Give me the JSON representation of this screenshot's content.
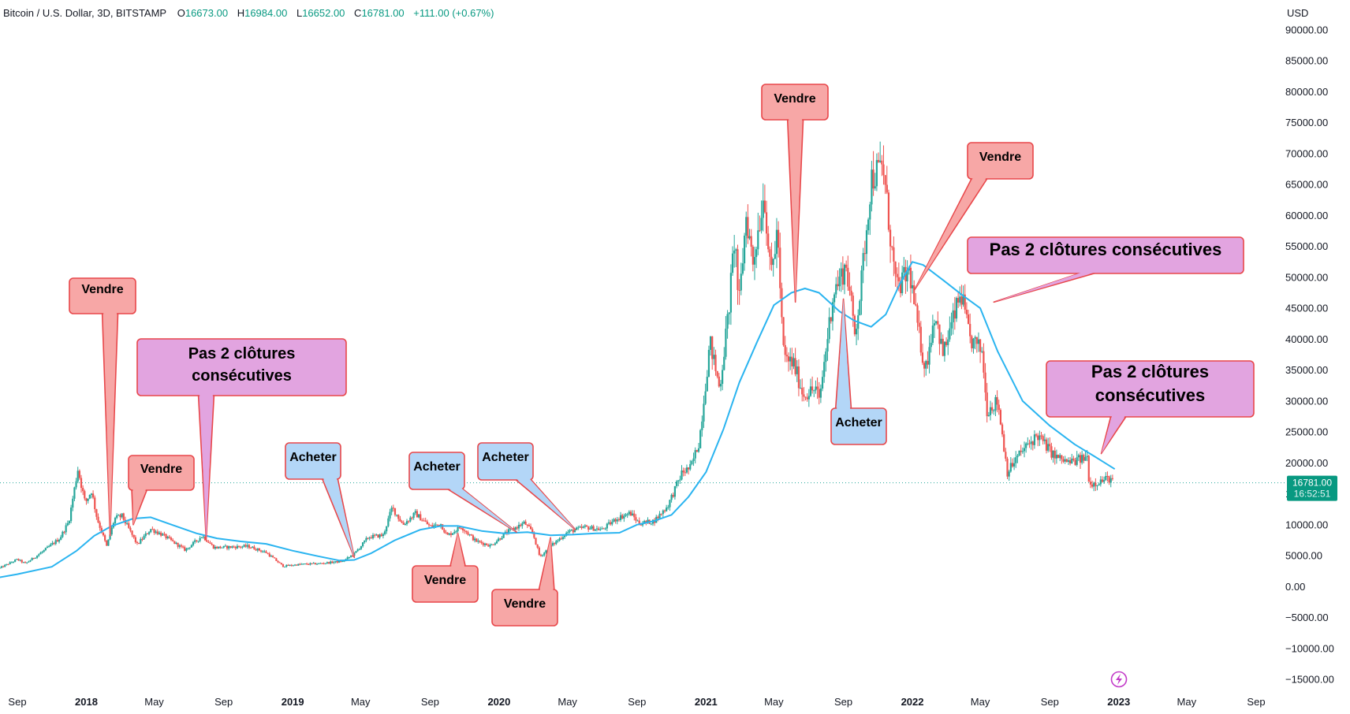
{
  "header": {
    "symbol": "Bitcoin / U.S. Dollar, 3D, BITSTAMP",
    "open_label": "O",
    "open": "16673.00",
    "high_label": "H",
    "high": "16984.00",
    "low_label": "L",
    "low": "16652.00",
    "close_label": "C",
    "close": "16781.00",
    "change": "+111.00 (+0.67%)"
  },
  "axis": {
    "currency": "USD"
  },
  "price_tag": {
    "price": "16781.00",
    "countdown": "16:52:51"
  },
  "colors": {
    "up": "#26a69a",
    "down": "#ef5350",
    "ma": "#2ab4f0",
    "sell_fill": "#f7a7a6",
    "sell_stroke": "#e8474a",
    "buy_fill": "#b3d6f7",
    "buy_stroke": "#e8474a",
    "note_fill": "#e2a4e0",
    "note_stroke": "#e8474a"
  },
  "chart_data": {
    "type": "candlestick",
    "title": "Bitcoin / U.S. Dollar, 3D, BITSTAMP",
    "ylabel": "USD",
    "ylim": [
      -15000,
      90000
    ],
    "xlim": [
      "2017-09-01",
      "2023-09-01"
    ],
    "y_ticks": [
      "90000.00",
      "85000.00",
      "80000.00",
      "75000.00",
      "70000.00",
      "65000.00",
      "60000.00",
      "55000.00",
      "50000.00",
      "45000.00",
      "40000.00",
      "35000.00",
      "30000.00",
      "25000.00",
      "20000.00",
      "15000.00",
      "10000.00",
      "5000.00",
      "0.00",
      "−5000.00",
      "−10000.00",
      "−15000.00"
    ],
    "x_ticks": [
      {
        "label": "Sep",
        "date": "2017-09-01",
        "bold": false
      },
      {
        "label": "2018",
        "date": "2018-01-01",
        "bold": true
      },
      {
        "label": "May",
        "date": "2018-05-01",
        "bold": false
      },
      {
        "label": "Sep",
        "date": "2018-09-01",
        "bold": false
      },
      {
        "label": "2019",
        "date": "2019-01-01",
        "bold": true
      },
      {
        "label": "May",
        "date": "2019-05-01",
        "bold": false
      },
      {
        "label": "Sep",
        "date": "2019-09-01",
        "bold": false
      },
      {
        "label": "2020",
        "date": "2020-01-01",
        "bold": true
      },
      {
        "label": "May",
        "date": "2020-05-01",
        "bold": false
      },
      {
        "label": "Sep",
        "date": "2020-09-01",
        "bold": false
      },
      {
        "label": "2021",
        "date": "2021-01-01",
        "bold": true
      },
      {
        "label": "May",
        "date": "2021-05-01",
        "bold": false
      },
      {
        "label": "Sep",
        "date": "2021-09-01",
        "bold": false
      },
      {
        "label": "2022",
        "date": "2022-01-01",
        "bold": true
      },
      {
        "label": "May",
        "date": "2022-05-01",
        "bold": false
      },
      {
        "label": "Sep",
        "date": "2022-09-01",
        "bold": false
      },
      {
        "label": "2023",
        "date": "2023-01-01",
        "bold": true
      },
      {
        "label": "May",
        "date": "2023-05-01",
        "bold": false
      },
      {
        "label": "Sep",
        "date": "2023-09-01",
        "bold": false
      }
    ],
    "price_path": [
      [
        "2017-08-01",
        3000
      ],
      [
        "2017-09-01",
        4400
      ],
      [
        "2017-09-15",
        3700
      ],
      [
        "2017-10-15",
        5600
      ],
      [
        "2017-11-15",
        7800
      ],
      [
        "2017-12-01",
        10500
      ],
      [
        "2017-12-17",
        19000
      ],
      [
        "2017-12-30",
        13500
      ],
      [
        "2018-01-10",
        15500
      ],
      [
        "2018-01-20",
        11000
      ],
      [
        "2018-02-06",
        6500
      ],
      [
        "2018-02-20",
        11000
      ],
      [
        "2018-03-05",
        11400
      ],
      [
        "2018-04-01",
        6800
      ],
      [
        "2018-04-25",
        9300
      ],
      [
        "2018-05-15",
        8400
      ],
      [
        "2018-06-25",
        5900
      ],
      [
        "2018-07-25",
        8200
      ],
      [
        "2018-08-15",
        6300
      ],
      [
        "2018-10-15",
        6500
      ],
      [
        "2018-11-15",
        5500
      ],
      [
        "2018-12-15",
        3300
      ],
      [
        "2019-01-15",
        3600
      ],
      [
        "2019-02-15",
        3700
      ],
      [
        "2019-03-31",
        4100
      ],
      [
        "2019-04-20",
        5300
      ],
      [
        "2019-05-15",
        8000
      ],
      [
        "2019-06-10",
        8300
      ],
      [
        "2019-06-26",
        12800
      ],
      [
        "2019-07-15",
        10000
      ],
      [
        "2019-08-06",
        11800
      ],
      [
        "2019-09-01",
        9700
      ],
      [
        "2019-09-20",
        10100
      ],
      [
        "2019-10-01",
        8200
      ],
      [
        "2019-10-26",
        9700
      ],
      [
        "2019-11-20",
        7400
      ],
      [
        "2019-12-17",
        6600
      ],
      [
        "2020-01-15",
        8800
      ],
      [
        "2020-02-15",
        10300
      ],
      [
        "2020-03-01",
        8600
      ],
      [
        "2020-03-13",
        4800
      ],
      [
        "2020-04-01",
        6500
      ],
      [
        "2020-05-01",
        8800
      ],
      [
        "2020-06-01",
        9600
      ],
      [
        "2020-07-01",
        9200
      ],
      [
        "2020-07-27",
        11000
      ],
      [
        "2020-08-20",
        11900
      ],
      [
        "2020-09-05",
        10200
      ],
      [
        "2020-10-01",
        10600
      ],
      [
        "2020-10-25",
        13000
      ],
      [
        "2020-11-20",
        18500
      ],
      [
        "2020-12-05",
        19200
      ],
      [
        "2020-12-20",
        23500
      ],
      [
        "2021-01-08",
        39500
      ],
      [
        "2021-01-25",
        32000
      ],
      [
        "2021-02-10",
        44500
      ],
      [
        "2021-02-21",
        57000
      ],
      [
        "2021-02-28",
        45000
      ],
      [
        "2021-03-13",
        60000
      ],
      [
        "2021-03-25",
        52500
      ],
      [
        "2021-04-14",
        64000
      ],
      [
        "2021-04-25",
        50000
      ],
      [
        "2021-05-08",
        58000
      ],
      [
        "2021-05-12",
        47000
      ],
      [
        "2021-05-19",
        37000
      ],
      [
        "2021-06-05",
        36000
      ],
      [
        "2021-06-22",
        31000
      ],
      [
        "2021-07-15",
        32000
      ],
      [
        "2021-07-20",
        29800
      ],
      [
        "2021-08-14",
        47500
      ],
      [
        "2021-09-06",
        52000
      ],
      [
        "2021-09-21",
        41000
      ],
      [
        "2021-10-01",
        47500
      ],
      [
        "2021-10-20",
        66000
      ],
      [
        "2021-11-10",
        68000
      ],
      [
        "2021-11-26",
        54000
      ],
      [
        "2021-12-04",
        48000
      ],
      [
        "2021-12-27",
        51000
      ],
      [
        "2022-01-10",
        42000
      ],
      [
        "2022-01-24",
        35000
      ],
      [
        "2022-02-10",
        44500
      ],
      [
        "2022-02-24",
        37500
      ],
      [
        "2022-03-28",
        47500
      ],
      [
        "2022-04-12",
        40000
      ],
      [
        "2022-05-05",
        38000
      ],
      [
        "2022-05-12",
        28500
      ],
      [
        "2022-06-01",
        30000
      ],
      [
        "2022-06-18",
        18500
      ],
      [
        "2022-07-10",
        21500
      ],
      [
        "2022-08-10",
        24500
      ],
      [
        "2022-09-10",
        21000
      ],
      [
        "2022-10-05",
        20000
      ],
      [
        "2022-11-06",
        20900
      ],
      [
        "2022-11-10",
        16500
      ],
      [
        "2022-12-15",
        17500
      ],
      [
        "2022-12-23",
        16781
      ]
    ],
    "moving_average": [
      [
        "2017-08-01",
        1500
      ],
      [
        "2017-09-01",
        2000
      ],
      [
        "2017-11-01",
        3200
      ],
      [
        "2017-12-15",
        5800
      ],
      [
        "2018-01-15",
        8200
      ],
      [
        "2018-02-15",
        9800
      ],
      [
        "2018-03-25",
        11000
      ],
      [
        "2018-04-25",
        11200
      ],
      [
        "2018-06-01",
        10000
      ],
      [
        "2018-07-15",
        8600
      ],
      [
        "2018-08-20",
        7800
      ],
      [
        "2018-10-01",
        7300
      ],
      [
        "2018-11-15",
        6900
      ],
      [
        "2019-01-01",
        5800
      ],
      [
        "2019-02-15",
        4900
      ],
      [
        "2019-03-25",
        4200
      ],
      [
        "2019-04-20",
        4300
      ],
      [
        "2019-05-20",
        5400
      ],
      [
        "2019-07-01",
        7500
      ],
      [
        "2019-08-15",
        9200
      ],
      [
        "2019-09-20",
        9800
      ],
      [
        "2019-10-20",
        9800
      ],
      [
        "2019-12-01",
        9000
      ],
      [
        "2020-01-10",
        8600
      ],
      [
        "2020-02-20",
        8800
      ],
      [
        "2020-04-01",
        8300
      ],
      [
        "2020-05-10",
        8400
      ],
      [
        "2020-06-20",
        8600
      ],
      [
        "2020-08-01",
        8700
      ],
      [
        "2020-09-01",
        10000
      ],
      [
        "2020-10-01",
        10600
      ],
      [
        "2020-11-01",
        11600
      ],
      [
        "2020-12-01",
        14500
      ],
      [
        "2021-01-01",
        18500
      ],
      [
        "2021-02-01",
        25500
      ],
      [
        "2021-03-01",
        33000
      ],
      [
        "2021-04-01",
        39500
      ],
      [
        "2021-05-01",
        45500
      ],
      [
        "2021-06-01",
        47500
      ],
      [
        "2021-06-25",
        48200
      ],
      [
        "2021-07-20",
        47500
      ],
      [
        "2021-08-25",
        44500
      ],
      [
        "2021-09-20",
        43000
      ],
      [
        "2021-10-20",
        42000
      ],
      [
        "2021-11-15",
        44000
      ],
      [
        "2021-12-10",
        49000
      ],
      [
        "2022-01-01",
        52500
      ],
      [
        "2022-01-20",
        52000
      ],
      [
        "2022-02-25",
        49500
      ],
      [
        "2022-04-01",
        47000
      ],
      [
        "2022-05-01",
        45000
      ],
      [
        "2022-06-01",
        38000
      ],
      [
        "2022-07-15",
        30000
      ],
      [
        "2022-09-01",
        26000
      ],
      [
        "2022-10-15",
        23000
      ],
      [
        "2022-11-20",
        21000
      ],
      [
        "2022-12-25",
        19000
      ]
    ],
    "current_price": 16781,
    "annotations": [
      {
        "text": "Vendre",
        "kind": "sell",
        "point": [
          "2018-02-12",
          8200
        ]
      },
      {
        "text": "Vendre",
        "kind": "sell",
        "point": [
          "2018-03-25",
          10000
        ]
      },
      {
        "text": "Pas 2 clôtures consécutives",
        "kind": "note",
        "point": [
          "2018-08-01",
          7600
        ]
      },
      {
        "text": "Acheter",
        "kind": "buy",
        "point": [
          "2019-04-20",
          4700
        ]
      },
      {
        "text": "Vendre",
        "kind": "sell",
        "point": [
          "2019-10-20",
          8600
        ]
      },
      {
        "text": "Acheter",
        "kind": "buy",
        "point": [
          "2020-02-01",
          8800
        ]
      },
      {
        "text": "Vendre",
        "kind": "sell",
        "point": [
          "2020-04-01",
          7900
        ]
      },
      {
        "text": "Acheter",
        "kind": "buy",
        "point": [
          "2020-05-15",
          9200
        ]
      },
      {
        "text": "Vendre",
        "kind": "sell",
        "point": [
          "2021-06-08",
          46000
        ]
      },
      {
        "text": "Acheter",
        "kind": "buy",
        "point": [
          "2021-09-01",
          46500
        ]
      },
      {
        "text": "Vendre",
        "kind": "sell",
        "point": [
          "2022-01-05",
          48000
        ]
      },
      {
        "text": "Pas 2 clôtures consécutives",
        "kind": "note",
        "point": [
          "2022-05-25",
          46000
        ]
      },
      {
        "text": "Pas 2 clôtures consécutives",
        "kind": "note",
        "point": [
          "2022-12-01",
          21500
        ]
      }
    ]
  }
}
